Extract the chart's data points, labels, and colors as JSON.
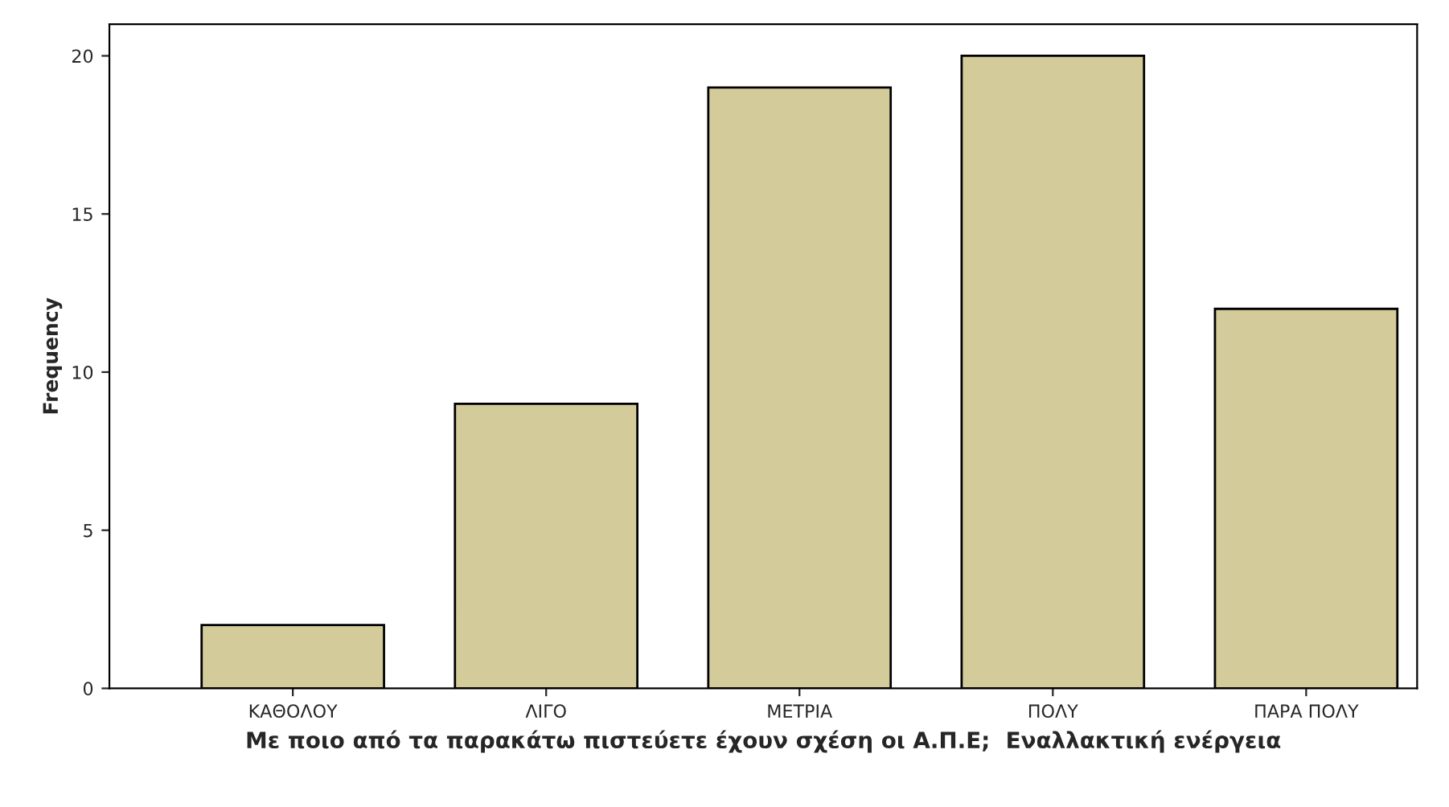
{
  "chart_data": {
    "type": "bar",
    "categories": [
      "ΚΑΘΟΛΟΥ",
      "ΛΙΓΟ",
      "ΜΕΤΡΙΑ",
      "ΠΟΛΥ",
      "ΠΑΡΑ ΠΟΛΥ"
    ],
    "values": [
      2,
      9,
      19,
      20,
      12
    ],
    "color": "#d3cc9a",
    "xlabel": "Με ποιο από τα παρακάτω πιστεύετε έχουν σχέση οι Α.Π.Ε;  Εναλλακτική ενέργεια",
    "ylabel": "Frequency",
    "ylim": [
      0,
      21
    ],
    "yticks": [
      0,
      5,
      10,
      15,
      20
    ],
    "grid": false
  }
}
